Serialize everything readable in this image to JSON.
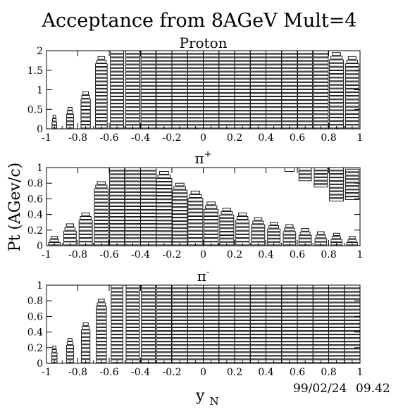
{
  "title": "Acceptance from 8AGeV Mult=4",
  "stamp": {
    "date": "99/02/24",
    "time": "09.42"
  },
  "y_axis_label": "Pt (AGev/c)",
  "x_axis_label": {
    "base": "y",
    "sub": "N"
  },
  "chart_data": [
    {
      "type": "heatmap",
      "title": "Proton",
      "xlim": [
        -1,
        1
      ],
      "ylim": [
        0,
        2
      ],
      "x_ticks": [
        "-1",
        "-0.8",
        "-0.6",
        "-0.4",
        "-0.2",
        "0",
        "0.2",
        "0.4",
        "0.6",
        "0.8",
        "1"
      ],
      "y_ticks": [
        "0",
        "0.5",
        "1",
        "1.5",
        "2"
      ],
      "description_style": "box",
      "columns": [
        {
          "x": -0.95,
          "ymax": 0.35,
          "w": 0.3
        },
        {
          "x": -0.85,
          "ymax": 0.55,
          "w": 0.45
        },
        {
          "x": -0.75,
          "ymax": 0.95,
          "w": 0.6
        },
        {
          "x": -0.65,
          "ymax": 1.85,
          "w": 0.75
        },
        {
          "x": -0.55,
          "ymax": 2.0,
          "w": 0.85
        },
        {
          "x": -0.45,
          "ymax": 2.0,
          "w": 0.9
        },
        {
          "x": -0.35,
          "ymax": 2.0,
          "w": 0.95
        },
        {
          "x": -0.25,
          "ymax": 2.0,
          "w": 1.0
        },
        {
          "x": -0.15,
          "ymax": 2.0,
          "w": 1.0
        },
        {
          "x": -0.05,
          "ymax": 2.0,
          "w": 1.0
        },
        {
          "x": 0.05,
          "ymax": 2.0,
          "w": 1.0
        },
        {
          "x": 0.15,
          "ymax": 2.0,
          "w": 1.0
        },
        {
          "x": 0.25,
          "ymax": 2.0,
          "w": 1.0
        },
        {
          "x": 0.35,
          "ymax": 2.0,
          "w": 1.0
        },
        {
          "x": 0.45,
          "ymax": 2.0,
          "w": 1.0
        },
        {
          "x": 0.55,
          "ymax": 2.0,
          "w": 1.0
        },
        {
          "x": 0.65,
          "ymax": 2.0,
          "w": 0.95
        },
        {
          "x": 0.75,
          "ymax": 2.0,
          "w": 0.95
        },
        {
          "x": 0.85,
          "ymax": 1.95,
          "w": 0.9
        },
        {
          "x": 0.95,
          "ymax": 1.85,
          "w": 0.85
        }
      ]
    },
    {
      "type": "heatmap",
      "title": "π+",
      "xlim": [
        -1,
        1
      ],
      "ylim": [
        0,
        1
      ],
      "x_ticks": [
        "-1",
        "-0.8",
        "-0.6",
        "-0.4",
        "-0.2",
        "0",
        "0.2",
        "0.4",
        "0.6",
        "0.8",
        "1"
      ],
      "y_ticks": [
        "0",
        "0.2",
        "0.4",
        "0.6",
        "0.8",
        "1"
      ],
      "description_style": "box",
      "columns": [
        {
          "x": -0.95,
          "ymax": 0.12,
          "w": 0.75
        },
        {
          "x": -0.85,
          "ymax": 0.28,
          "w": 0.8
        },
        {
          "x": -0.75,
          "ymax": 0.42,
          "w": 0.85
        },
        {
          "x": -0.65,
          "ymax": 0.82,
          "w": 0.9
        },
        {
          "x": -0.55,
          "ymax": 1.0,
          "w": 0.95
        },
        {
          "x": -0.45,
          "ymax": 1.0,
          "w": 1.0
        },
        {
          "x": -0.35,
          "ymax": 1.0,
          "w": 1.0
        },
        {
          "x": -0.25,
          "ymax": 0.95,
          "w": 1.0
        },
        {
          "x": -0.15,
          "ymax": 0.8,
          "w": 0.95
        },
        {
          "x": -0.05,
          "ymax": 0.7,
          "w": 0.95
        },
        {
          "x": 0.05,
          "ymax": 0.56,
          "w": 0.9
        },
        {
          "x": 0.15,
          "ymax": 0.48,
          "w": 0.9
        },
        {
          "x": 0.25,
          "ymax": 0.42,
          "w": 0.85
        },
        {
          "x": 0.35,
          "ymax": 0.36,
          "w": 0.85
        },
        {
          "x": 0.45,
          "ymax": 0.3,
          "w": 0.8
        },
        {
          "x": 0.55,
          "ymax": 0.27,
          "w": 0.8
        },
        {
          "x": 0.65,
          "ymax": 0.22,
          "w": 0.8
        },
        {
          "x": 0.75,
          "ymax": 0.18,
          "w": 0.75
        },
        {
          "x": 0.85,
          "ymax": 0.16,
          "w": 0.7
        },
        {
          "x": 0.95,
          "ymax": 0.12,
          "w": 0.7
        }
      ],
      "high_islands": [
        {
          "x": 0.55,
          "ymin": 0.94,
          "ymax": 1.0,
          "w": 0.6
        },
        {
          "x": 0.65,
          "ymin": 0.82,
          "ymax": 1.0,
          "w": 0.8
        },
        {
          "x": 0.75,
          "ymin": 0.74,
          "ymax": 1.0,
          "w": 0.85
        },
        {
          "x": 0.85,
          "ymin": 0.56,
          "ymax": 1.0,
          "w": 0.9
        },
        {
          "x": 0.95,
          "ymin": 0.58,
          "ymax": 0.98,
          "w": 0.85
        }
      ]
    },
    {
      "type": "heatmap",
      "title": "π-",
      "xlim": [
        -1,
        1
      ],
      "ylim": [
        0,
        1
      ],
      "x_ticks": [
        "-1",
        "-0.8",
        "-0.6",
        "-0.4",
        "-0.2",
        "0",
        "0.2",
        "0.4",
        "0.6",
        "0.8",
        "1"
      ],
      "y_ticks": [
        "0",
        "0.2",
        "0.4",
        "0.6",
        "0.8",
        "1"
      ],
      "description_style": "box",
      "columns": [
        {
          "x": -0.95,
          "ymax": 0.22,
          "w": 0.35
        },
        {
          "x": -0.85,
          "ymax": 0.32,
          "w": 0.45
        },
        {
          "x": -0.75,
          "ymax": 0.52,
          "w": 0.55
        },
        {
          "x": -0.65,
          "ymax": 0.82,
          "w": 0.65
        },
        {
          "x": -0.55,
          "ymax": 1.0,
          "w": 0.75
        },
        {
          "x": -0.45,
          "ymax": 1.0,
          "w": 0.85
        },
        {
          "x": -0.35,
          "ymax": 1.0,
          "w": 0.9
        },
        {
          "x": -0.25,
          "ymax": 1.0,
          "w": 0.95
        },
        {
          "x": -0.15,
          "ymax": 1.0,
          "w": 1.0
        },
        {
          "x": -0.05,
          "ymax": 1.0,
          "w": 1.0
        },
        {
          "x": 0.05,
          "ymax": 1.0,
          "w": 1.0
        },
        {
          "x": 0.15,
          "ymax": 1.0,
          "w": 1.0
        },
        {
          "x": 0.25,
          "ymax": 1.0,
          "w": 1.0
        },
        {
          "x": 0.35,
          "ymax": 1.0,
          "w": 1.0
        },
        {
          "x": 0.45,
          "ymax": 1.0,
          "w": 1.0
        },
        {
          "x": 0.55,
          "ymax": 1.0,
          "w": 1.0
        },
        {
          "x": 0.65,
          "ymax": 1.0,
          "w": 1.0
        },
        {
          "x": 0.75,
          "ymax": 1.0,
          "w": 1.0
        },
        {
          "x": 0.85,
          "ymax": 1.0,
          "w": 1.0
        },
        {
          "x": 0.95,
          "ymax": 1.0,
          "w": 1.0
        }
      ]
    }
  ]
}
